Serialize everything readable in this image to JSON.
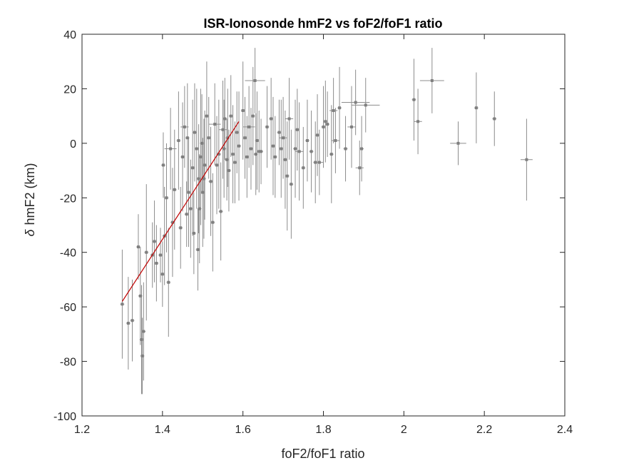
{
  "chart_data": {
    "type": "scatter",
    "title": "ISR-Ionosonde hmF2 vs foF2/foF1 ratio",
    "xlabel": "foF2/foF1 ratio",
    "ylabel_symbol": "δ",
    "ylabel": "hmF2 (km)",
    "xlim": [
      1.2,
      2.4
    ],
    "ylim": [
      -100,
      40
    ],
    "xticks": [
      1.2,
      1.4,
      1.6,
      1.8,
      2.0,
      2.2,
      2.4
    ],
    "xtick_labels": [
      "1.2",
      "1.4",
      "1.6",
      "1.8",
      "2",
      "2.2",
      "2.4"
    ],
    "yticks": [
      -100,
      -80,
      -60,
      -40,
      -20,
      0,
      20,
      40
    ],
    "ytick_labels": [
      "-100",
      "-80",
      "-60",
      "-40",
      "-20",
      "0",
      "20",
      "40"
    ],
    "grid": false,
    "colors": {
      "points": "#7f7f7f",
      "errorbars": "#8c8c8c",
      "fit": "#c00000",
      "axes": "#262626"
    },
    "fit_line": {
      "x": [
        1.3,
        1.59
      ],
      "y": [
        -58,
        8
      ]
    },
    "points": [
      {
        "x": 1.3,
        "y": -59,
        "ey": 20,
        "ex": 0.005
      },
      {
        "x": 1.315,
        "y": -66,
        "ey": 17,
        "ex": 0.005
      },
      {
        "x": 1.325,
        "y": -65,
        "ey": 15,
        "ex": 0.005
      },
      {
        "x": 1.34,
        "y": -38,
        "ey": 12,
        "ex": 0.005
      },
      {
        "x": 1.345,
        "y": -56,
        "ey": 18,
        "ex": 0.005
      },
      {
        "x": 1.348,
        "y": -72,
        "ey": 20,
        "ex": 0.005
      },
      {
        "x": 1.35,
        "y": -78,
        "ey": 14,
        "ex": 0.005
      },
      {
        "x": 1.353,
        "y": -69,
        "ey": 18,
        "ex": 0.005
      },
      {
        "x": 1.36,
        "y": -40,
        "ey": 25,
        "ex": 0.005
      },
      {
        "x": 1.375,
        "y": -41,
        "ey": 12,
        "ex": 0.005
      },
      {
        "x": 1.38,
        "y": -36,
        "ey": 15,
        "ex": 0.005
      },
      {
        "x": 1.385,
        "y": -44,
        "ey": 14,
        "ex": 0.005
      },
      {
        "x": 1.395,
        "y": -41,
        "ey": 10,
        "ex": 0.005
      },
      {
        "x": 1.4,
        "y": -48,
        "ey": 12,
        "ex": 0.005
      },
      {
        "x": 1.402,
        "y": -8,
        "ey": 12,
        "ex": 0.005
      },
      {
        "x": 1.405,
        "y": -34,
        "ey": 18,
        "ex": 0.005
      },
      {
        "x": 1.41,
        "y": -20,
        "ey": 20,
        "ex": 0.005
      },
      {
        "x": 1.415,
        "y": -51,
        "ey": 20,
        "ex": 0.005
      },
      {
        "x": 1.42,
        "y": -2,
        "ey": 15,
        "ex": 0.015
      },
      {
        "x": 1.425,
        "y": -29,
        "ey": 20,
        "ex": 0.005
      },
      {
        "x": 1.43,
        "y": -17,
        "ey": 22,
        "ex": 0.005
      },
      {
        "x": 1.44,
        "y": 1,
        "ey": 18,
        "ex": 0.005
      },
      {
        "x": 1.445,
        "y": -31,
        "ey": 15,
        "ex": 0.005
      },
      {
        "x": 1.45,
        "y": -5,
        "ey": 20,
        "ex": 0.005
      },
      {
        "x": 1.455,
        "y": 6,
        "ey": 15,
        "ex": 0.01
      },
      {
        "x": 1.46,
        "y": -26,
        "ey": 12,
        "ex": 0.005
      },
      {
        "x": 1.462,
        "y": 2,
        "ey": 20,
        "ex": 0.005
      },
      {
        "x": 1.465,
        "y": -18,
        "ey": 20,
        "ex": 0.005
      },
      {
        "x": 1.47,
        "y": -24,
        "ey": 18,
        "ex": 0.005
      },
      {
        "x": 1.475,
        "y": -9,
        "ey": 25,
        "ex": 0.005
      },
      {
        "x": 1.478,
        "y": -33,
        "ey": 15,
        "ex": 0.005
      },
      {
        "x": 1.48,
        "y": 4,
        "ey": 18,
        "ex": 0.005
      },
      {
        "x": 1.485,
        "y": -2,
        "ey": 22,
        "ex": 0.005
      },
      {
        "x": 1.488,
        "y": -39,
        "ey": 15,
        "ex": 0.005
      },
      {
        "x": 1.49,
        "y": -13,
        "ey": 20,
        "ex": 0.005
      },
      {
        "x": 1.492,
        "y": -24,
        "ey": 20,
        "ex": 0.005
      },
      {
        "x": 1.495,
        "y": -5,
        "ey": 25,
        "ex": 0.005
      },
      {
        "x": 1.498,
        "y": 0,
        "ey": 18,
        "ex": 0.005
      },
      {
        "x": 1.5,
        "y": -18,
        "ey": 20,
        "ex": 0.005
      },
      {
        "x": 1.503,
        "y": -13,
        "ey": 22,
        "ex": 0.005
      },
      {
        "x": 1.505,
        "y": -8,
        "ey": 20,
        "ex": 0.005
      },
      {
        "x": 1.51,
        "y": 10,
        "ey": 20,
        "ex": 0.005
      },
      {
        "x": 1.515,
        "y": 2,
        "ey": 15,
        "ex": 0.005
      },
      {
        "x": 1.52,
        "y": -14,
        "ey": 20,
        "ex": 0.005
      },
      {
        "x": 1.525,
        "y": -29,
        "ey": 18,
        "ex": 0.005
      },
      {
        "x": 1.53,
        "y": 7,
        "ey": 15,
        "ex": 0.015
      },
      {
        "x": 1.535,
        "y": -8,
        "ey": 18,
        "ex": 0.005
      },
      {
        "x": 1.54,
        "y": -4,
        "ey": 20,
        "ex": 0.005
      },
      {
        "x": 1.545,
        "y": -25,
        "ey": 18,
        "ex": 0.005
      },
      {
        "x": 1.55,
        "y": 5,
        "ey": 18,
        "ex": 0.01
      },
      {
        "x": 1.553,
        "y": -2,
        "ey": 18,
        "ex": 0.005
      },
      {
        "x": 1.555,
        "y": 9,
        "ey": 15,
        "ex": 0.005
      },
      {
        "x": 1.56,
        "y": -6,
        "ey": 15,
        "ex": 0.005
      },
      {
        "x": 1.562,
        "y": 2,
        "ey": 18,
        "ex": 0.005
      },
      {
        "x": 1.565,
        "y": -10,
        "ey": 15,
        "ex": 0.005
      },
      {
        "x": 1.57,
        "y": 10,
        "ey": 15,
        "ex": 0.005
      },
      {
        "x": 1.575,
        "y": -4,
        "ey": 18,
        "ex": 0.005
      },
      {
        "x": 1.58,
        "y": -7,
        "ey": 15,
        "ex": 0.005
      },
      {
        "x": 1.585,
        "y": 4,
        "ey": 15,
        "ex": 0.005
      },
      {
        "x": 1.59,
        "y": -1,
        "ey": 20,
        "ex": 0.005
      },
      {
        "x": 1.6,
        "y": 12,
        "ey": 18,
        "ex": 0.005
      },
      {
        "x": 1.605,
        "y": 2,
        "ey": 15,
        "ex": 0.005
      },
      {
        "x": 1.61,
        "y": -5,
        "ey": 15,
        "ex": 0.005
      },
      {
        "x": 1.615,
        "y": 6,
        "ey": 15,
        "ex": 0.015
      },
      {
        "x": 1.62,
        "y": -2,
        "ey": 15,
        "ex": 0.005
      },
      {
        "x": 1.625,
        "y": 10,
        "ey": 18,
        "ex": 0.005
      },
      {
        "x": 1.63,
        "y": 23,
        "ey": 12,
        "ex": 0.025
      },
      {
        "x": 1.632,
        "y": -4,
        "ey": 15,
        "ex": 0.005
      },
      {
        "x": 1.635,
        "y": 1,
        "ey": 18,
        "ex": 0.005
      },
      {
        "x": 1.64,
        "y": -3,
        "ey": 15,
        "ex": 0.005
      },
      {
        "x": 1.645,
        "y": -3,
        "ey": 12,
        "ex": 0.005
      },
      {
        "x": 1.66,
        "y": 6,
        "ey": 15,
        "ex": 0.005
      },
      {
        "x": 1.67,
        "y": 9,
        "ey": 15,
        "ex": 0.005
      },
      {
        "x": 1.675,
        "y": -1,
        "ey": 18,
        "ex": 0.005
      },
      {
        "x": 1.68,
        "y": -5,
        "ey": 15,
        "ex": 0.005
      },
      {
        "x": 1.69,
        "y": 4,
        "ey": 12,
        "ex": 0.005
      },
      {
        "x": 1.695,
        "y": -2,
        "ey": 18,
        "ex": 0.005
      },
      {
        "x": 1.7,
        "y": 2,
        "ey": 15,
        "ex": 0.01
      },
      {
        "x": 1.705,
        "y": -6,
        "ey": 18,
        "ex": 0.005
      },
      {
        "x": 1.71,
        "y": -12,
        "ey": 20,
        "ex": 0.005
      },
      {
        "x": 1.715,
        "y": 9,
        "ey": 15,
        "ex": 0.01
      },
      {
        "x": 1.72,
        "y": -15,
        "ey": 20,
        "ex": 0.005
      },
      {
        "x": 1.73,
        "y": -2,
        "ey": 18,
        "ex": 0.005
      },
      {
        "x": 1.735,
        "y": 5,
        "ey": 15,
        "ex": 0.005
      },
      {
        "x": 1.74,
        "y": -3,
        "ey": 18,
        "ex": 0.01
      },
      {
        "x": 1.75,
        "y": -9,
        "ey": 15,
        "ex": 0.005
      },
      {
        "x": 1.76,
        "y": 1,
        "ey": 15,
        "ex": 0.005
      },
      {
        "x": 1.77,
        "y": -3,
        "ey": 15,
        "ex": 0.005
      },
      {
        "x": 1.78,
        "y": -7,
        "ey": 15,
        "ex": 0.005
      },
      {
        "x": 1.785,
        "y": 3,
        "ey": 15,
        "ex": 0.005
      },
      {
        "x": 1.79,
        "y": -7,
        "ey": 12,
        "ex": 0.01
      },
      {
        "x": 1.8,
        "y": 6,
        "ey": 15,
        "ex": 0.005
      },
      {
        "x": 1.805,
        "y": 8,
        "ey": 15,
        "ex": 0.005
      },
      {
        "x": 1.81,
        "y": 7,
        "ey": 12,
        "ex": 0.005
      },
      {
        "x": 1.82,
        "y": -4,
        "ey": 18,
        "ex": 0.005
      },
      {
        "x": 1.825,
        "y": 12,
        "ey": 12,
        "ex": 0.01
      },
      {
        "x": 1.83,
        "y": 1,
        "ey": 12,
        "ex": 0.01
      },
      {
        "x": 1.84,
        "y": 13,
        "ey": 15,
        "ex": 0.005
      },
      {
        "x": 1.855,
        "y": -2,
        "ey": 12,
        "ex": 0.005
      },
      {
        "x": 1.87,
        "y": 6,
        "ey": 15,
        "ex": 0.01
      },
      {
        "x": 1.88,
        "y": 15,
        "ey": 12,
        "ex": 0.035
      },
      {
        "x": 1.89,
        "y": -9,
        "ey": 10,
        "ex": 0.01
      },
      {
        "x": 1.895,
        "y": -2,
        "ey": 12,
        "ex": 0.005
      },
      {
        "x": 1.905,
        "y": 14,
        "ey": 10,
        "ex": 0.035
      },
      {
        "x": 2.025,
        "y": 16,
        "ey": 15,
        "ex": 0.005
      },
      {
        "x": 2.035,
        "y": 8,
        "ey": 12,
        "ex": 0.01
      },
      {
        "x": 2.07,
        "y": 23,
        "ey": 12,
        "ex": 0.03
      },
      {
        "x": 2.135,
        "y": 0,
        "ey": 8,
        "ex": 0.02
      },
      {
        "x": 2.18,
        "y": 13,
        "ey": 13,
        "ex": 0.005
      },
      {
        "x": 2.225,
        "y": 9,
        "ey": 10,
        "ex": 0.005
      },
      {
        "x": 2.305,
        "y": -6,
        "ey": 15,
        "ex": 0.015
      }
    ]
  }
}
